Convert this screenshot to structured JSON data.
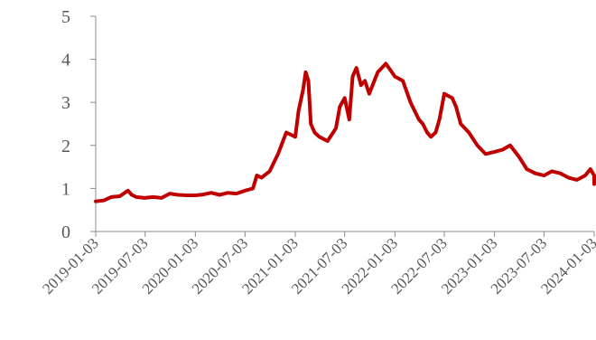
{
  "chart_data": {
    "type": "line",
    "title": "",
    "xlabel": "",
    "ylabel": "",
    "ylim": [
      0,
      5
    ],
    "yticks": [
      "0",
      "1",
      "2",
      "3",
      "4",
      "5"
    ],
    "xticks": [
      "2019-01-03",
      "2019-07-03",
      "2020-01-03",
      "2020-07-03",
      "2021-01-03",
      "2021-07-03",
      "2022-01-03",
      "2022-07-03",
      "2023-01-03",
      "2023-07-03",
      "2024-01-03"
    ],
    "grid": false,
    "legend": "none",
    "color": "#c00000",
    "series": [
      {
        "x": [
          "2019-01-03",
          "2019-02-01",
          "2019-03-01",
          "2019-04-01",
          "2019-05-01",
          "2019-05-15",
          "2019-06-01",
          "2019-07-01",
          "2019-08-01",
          "2019-09-01",
          "2019-10-01",
          "2019-11-01",
          "2019-12-01",
          "2020-01-03",
          "2020-02-01",
          "2020-03-01",
          "2020-04-01",
          "2020-05-01",
          "2020-06-01",
          "2020-07-03",
          "2020-08-01",
          "2020-08-15",
          "2020-09-01",
          "2020-10-01",
          "2020-11-01",
          "2020-12-01",
          "2021-01-03",
          "2021-01-15",
          "2021-02-01",
          "2021-02-10",
          "2021-02-20",
          "2021-03-01",
          "2021-03-15",
          "2021-04-01",
          "2021-05-01",
          "2021-06-01",
          "2021-06-15",
          "2021-07-03",
          "2021-07-20",
          "2021-08-01",
          "2021-08-15",
          "2021-09-01",
          "2021-09-15",
          "2021-10-01",
          "2021-11-01",
          "2021-12-01",
          "2022-01-03",
          "2022-02-01",
          "2022-03-01",
          "2022-04-01",
          "2022-04-15",
          "2022-05-01",
          "2022-05-15",
          "2022-06-01",
          "2022-06-15",
          "2022-07-03",
          "2022-08-01",
          "2022-08-15",
          "2022-09-01",
          "2022-10-01",
          "2022-11-01",
          "2022-12-01",
          "2023-01-03",
          "2023-02-01",
          "2023-03-01",
          "2023-04-01",
          "2023-05-01",
          "2023-06-01",
          "2023-07-03",
          "2023-08-01",
          "2023-09-01",
          "2023-10-01",
          "2023-11-01",
          "2023-12-01",
          "2023-12-20",
          "2024-01-03",
          "2024-02-01"
        ],
        "values": [
          0.7,
          0.72,
          0.8,
          0.82,
          0.95,
          0.85,
          0.8,
          0.78,
          0.8,
          0.78,
          0.88,
          0.85,
          0.84,
          0.84,
          0.86,
          0.9,
          0.85,
          0.9,
          0.88,
          0.95,
          1.0,
          1.3,
          1.25,
          1.4,
          1.8,
          2.3,
          2.2,
          2.8,
          3.3,
          3.7,
          3.5,
          2.5,
          2.3,
          2.2,
          2.1,
          2.4,
          2.9,
          3.1,
          2.6,
          3.6,
          3.8,
          3.4,
          3.5,
          3.2,
          3.7,
          3.9,
          3.6,
          3.5,
          3.0,
          2.6,
          2.5,
          2.3,
          2.2,
          2.3,
          2.6,
          3.2,
          3.1,
          2.9,
          2.5,
          2.3,
          2.0,
          1.8,
          1.85,
          1.9,
          2.0,
          1.75,
          1.45,
          1.35,
          1.3,
          1.4,
          1.35,
          1.25,
          1.2,
          1.3,
          1.45,
          1.3,
          1.1
        ]
      }
    ]
  }
}
